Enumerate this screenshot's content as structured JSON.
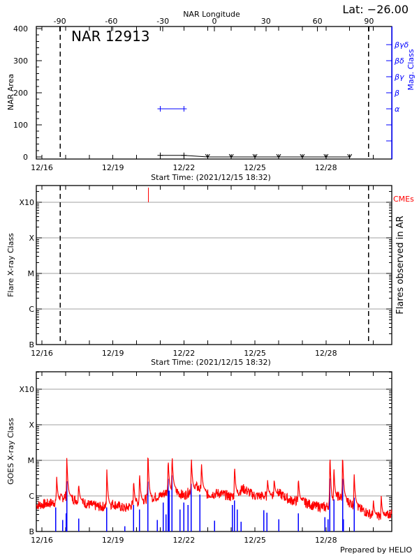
{
  "header": {
    "lat_label": "Lat: −26.00",
    "footer": "Prepared by HELIO"
  },
  "colors": {
    "axis": "#000000",
    "mag_class": "#0000ff",
    "goes_long": "#ff0000",
    "goes_short": "#0000ff",
    "cme": "#ff0000",
    "grid": "#a0a0a0"
  },
  "chart_data": [
    {
      "type": "line",
      "title": "NAR 12913",
      "top_axis_label": "NAR Longitude",
      "top_ticks": [
        "-90",
        "-60",
        "-30",
        "0",
        "30",
        "60",
        "90"
      ],
      "xlabel": "Start Time: (2021/12/15 18:32)",
      "x_tick_labels": [
        "12/16",
        "12/19",
        "12/22",
        "12/25",
        "12/28"
      ],
      "x_tick_dates": [
        "2021-12-16T00:00",
        "2021-12-19T00:00",
        "2021-12-22T00:00",
        "2021-12-25T00:00",
        "2021-12-28T00:00"
      ],
      "xlim": [
        "2021-12-15T18:32",
        "2021-12-30T18:40"
      ],
      "ylabel": "NAR Area",
      "y_ticks": [
        "0",
        "100",
        "200",
        "300",
        "400"
      ],
      "ylim": [
        0,
        400
      ],
      "right_axis_label": "Mag. Class",
      "right_ticks": [
        "α",
        "β",
        "βγ",
        "βδ",
        "βγδ"
      ],
      "limb_lines": [
        "2021-12-16T18:30",
        "2021-12-29T19:15"
      ],
      "area_series": [
        {
          "t": "2021-12-21T00:00",
          "v": 5,
          "marker": "plus"
        },
        {
          "t": "2021-12-22T00:00",
          "v": 5,
          "marker": "plus"
        },
        {
          "t": "2021-12-23T00:00",
          "v": 0,
          "marker": "down"
        },
        {
          "t": "2021-12-24T00:00",
          "v": 0,
          "marker": "down"
        },
        {
          "t": "2021-12-25T00:00",
          "v": 0,
          "marker": "down"
        },
        {
          "t": "2021-12-26T00:00",
          "v": 0,
          "marker": "down"
        },
        {
          "t": "2021-12-27T00:00",
          "v": 0,
          "marker": "down"
        },
        {
          "t": "2021-12-28T00:00",
          "v": 0,
          "marker": "down"
        },
        {
          "t": "2021-12-29T00:00",
          "v": 0,
          "marker": "down"
        }
      ],
      "mag_class_series": [
        {
          "t": "2021-12-21T00:00",
          "class": "α"
        },
        {
          "t": "2021-12-22T00:00",
          "class": "α"
        }
      ]
    },
    {
      "type": "scatter",
      "ylabel": "Flare X-ray Class",
      "right_axis_label": "Flares observed in AR",
      "cme_label": "CMEs",
      "xlabel": "Start Time: (2021/12/15 18:32)",
      "x_tick_labels": [
        "12/16",
        "12/19",
        "12/22",
        "12/25",
        "12/28"
      ],
      "y_ticks": [
        "B",
        "C",
        "M",
        "X",
        "X10"
      ],
      "y_scale": "log",
      "grid": true,
      "limb_lines": [
        "2021-12-16T18:30",
        "2021-12-29T19:15"
      ],
      "flares": [],
      "cmes": [
        "2021-12-20T12:00"
      ]
    },
    {
      "type": "line",
      "ylabel": "GOES X-ray Class",
      "x_tick_labels": [
        "12/16",
        "12/19",
        "12/22",
        "12/25",
        "12/28"
      ],
      "y_ticks": [
        "B",
        "C",
        "M",
        "X",
        "X10"
      ],
      "y_scale": "log",
      "grid": true,
      "long_channel_background": [
        [
          "2021-12-15T18:32",
          5.5e-07
        ],
        [
          "2021-12-16T00:00",
          5.7e-07
        ],
        [
          "2021-12-16T12:00",
          6.5e-07
        ],
        [
          "2021-12-17T00:00",
          1e-06
        ],
        [
          "2021-12-17T12:00",
          7.5e-07
        ],
        [
          "2021-12-18T00:00",
          5.7e-07
        ],
        [
          "2021-12-18T12:00",
          4.9e-07
        ],
        [
          "2021-12-19T00:00",
          6e-07
        ],
        [
          "2021-12-19T12:00",
          4.4e-07
        ],
        [
          "2021-12-20T00:00",
          6.5e-07
        ],
        [
          "2021-12-20T12:00",
          8.7e-07
        ],
        [
          "2021-12-21T00:00",
          1e-06
        ],
        [
          "2021-12-21T12:00",
          1.6e-06
        ],
        [
          "2021-12-22T00:00",
          1e-06
        ],
        [
          "2021-12-22T12:00",
          1.85e-06
        ],
        [
          "2021-12-23T00:00",
          1.1e-06
        ],
        [
          "2021-12-23T12:00",
          1.2e-06
        ],
        [
          "2021-12-24T00:00",
          9.4e-07
        ],
        [
          "2021-12-24T12:00",
          1.6e-06
        ],
        [
          "2021-12-25T00:00",
          1e-06
        ],
        [
          "2021-12-25T12:00",
          1e-06
        ],
        [
          "2021-12-26T00:00",
          1.2e-06
        ],
        [
          "2021-12-26T12:00",
          7.5e-07
        ],
        [
          "2021-12-27T00:00",
          7e-07
        ],
        [
          "2021-12-27T12:00",
          5.2e-07
        ],
        [
          "2021-12-28T00:00",
          4.8e-07
        ],
        [
          "2021-12-28T12:00",
          1e-06
        ],
        [
          "2021-12-29T00:00",
          6.5e-07
        ],
        [
          "2021-12-29T12:00",
          4.1e-07
        ],
        [
          "2021-12-30T00:00",
          2.8e-07
        ],
        [
          "2021-12-30T12:00",
          2.6e-07
        ],
        [
          "2021-12-30T18:40",
          3.3e-07
        ]
      ],
      "long_channel_peaks": [
        [
          "2021-12-16T15:00",
          3.5e-06
        ],
        [
          "2021-12-17T01:15",
          1.3e-05
        ],
        [
          "2021-12-17T13:15",
          2.3e-06
        ],
        [
          "2021-12-18T17:50",
          6e-06
        ],
        [
          "2021-12-19T21:00",
          3e-06
        ],
        [
          "2021-12-20T03:00",
          4.8e-06
        ],
        [
          "2021-12-20T11:30",
          2e-05
        ],
        [
          "2021-12-21T08:00",
          1.2e-05
        ],
        [
          "2021-12-21T12:00",
          1.5e-05
        ],
        [
          "2021-12-22T07:30",
          1.3e-05
        ],
        [
          "2021-12-22T17:45",
          9e-06
        ],
        [
          "2021-12-24T03:20",
          7.7e-06
        ],
        [
          "2021-12-25T12:45",
          3e-06
        ],
        [
          "2021-12-25T19:30",
          3e-06
        ],
        [
          "2021-12-26T20:00",
          3.4e-06
        ],
        [
          "2021-12-28T04:00",
          1.8e-05
        ],
        [
          "2021-12-28T08:00",
          7.5e-06
        ],
        [
          "2021-12-28T16:50",
          1.7e-05
        ],
        [
          "2021-12-29T04:30",
          5e-06
        ],
        [
          "2021-12-30T00:00",
          8e-07
        ],
        [
          "2021-12-30T08:00",
          1e-06
        ]
      ],
      "short_channel_bars": [
        [
          "2021-12-16T14:00",
          4.8e-07
        ],
        [
          "2021-12-16T21:00",
          2.1e-07
        ],
        [
          "2021-12-17T00:30",
          3.2e-07
        ],
        [
          "2021-12-17T01:15",
          2.6e-06
        ],
        [
          "2021-12-17T13:15",
          2.3e-07
        ],
        [
          "2021-12-18T17:50",
          4.8e-07
        ],
        [
          "2021-12-19T12:00",
          1.4e-07
        ],
        [
          "2021-12-19T21:00",
          5.6e-07
        ],
        [
          "2021-12-20T03:00",
          4.1e-07
        ],
        [
          "2021-12-20T11:30",
          2.5e-06
        ],
        [
          "2021-12-20T21:00",
          2.1e-07
        ],
        [
          "2021-12-21T03:00",
          6.5e-07
        ],
        [
          "2021-12-21T06:00",
          3e-07
        ],
        [
          "2021-12-21T08:00",
          3e-06
        ],
        [
          "2021-12-21T09:00",
          1.4e-06
        ],
        [
          "2021-12-21T12:00",
          3.8e-06
        ],
        [
          "2021-12-21T20:00",
          4.1e-07
        ],
        [
          "2021-12-22T00:00",
          6.5e-07
        ],
        [
          "2021-12-22T04:00",
          5.6e-07
        ],
        [
          "2021-12-22T07:30",
          2.2e-06
        ],
        [
          "2021-12-22T16:00",
          1.1e-06
        ],
        [
          "2021-12-23T07:00",
          2e-07
        ],
        [
          "2021-12-24T01:00",
          5.6e-07
        ],
        [
          "2021-12-24T03:20",
          7.5e-07
        ],
        [
          "2021-12-24T06:00",
          4.1e-07
        ],
        [
          "2021-12-24T10:00",
          1.9e-07
        ],
        [
          "2021-12-25T09:00",
          4e-07
        ],
        [
          "2021-12-25T12:00",
          3.4e-07
        ],
        [
          "2021-12-26T00:00",
          2.2e-07
        ],
        [
          "2021-12-26T20:00",
          3.2e-07
        ],
        [
          "2021-12-27T23:00",
          2.5e-07
        ],
        [
          "2021-12-28T02:00",
          2.2e-07
        ],
        [
          "2021-12-28T04:00",
          3.1e-06
        ],
        [
          "2021-12-28T08:00",
          8e-07
        ],
        [
          "2021-12-28T16:50",
          3e-06
        ],
        [
          "2021-12-28T17:30",
          2.2e-07
        ],
        [
          "2021-12-29T04:30",
          9e-07
        ]
      ]
    }
  ]
}
